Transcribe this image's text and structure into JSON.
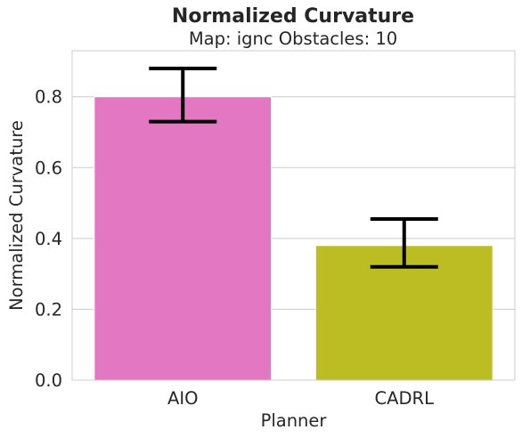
{
  "chart_data": {
    "type": "bar",
    "title": "Normalized Curvature",
    "subtitle": "Map: ignc Obstacles: 10",
    "xlabel": "Planner",
    "ylabel": "Normalized Curvature",
    "categories": [
      "AIO",
      "CADRL"
    ],
    "values": [
      0.8,
      0.38
    ],
    "error_low": [
      0.73,
      0.32
    ],
    "error_high": [
      0.88,
      0.455
    ],
    "colors": [
      "#e377c2",
      "#bcbd22"
    ],
    "ylim": [
      0,
      0.93
    ],
    "yticks": [
      0.0,
      0.2,
      0.4,
      0.6,
      0.8
    ],
    "ytick_labels": [
      "0.0",
      "0.2",
      "0.4",
      "0.6",
      "0.8"
    ],
    "grid": "horizontal",
    "legend": "none"
  }
}
